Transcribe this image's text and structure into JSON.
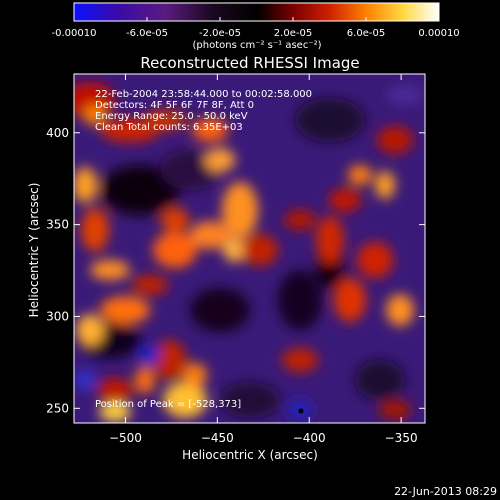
{
  "colorbar": {
    "ticks": [
      "-0.00010",
      "-6.0e-05",
      "-2.0e-05",
      "2.0e-05",
      "6.0e-05",
      "0.00010"
    ],
    "tick_values": [
      -0.0001,
      -6e-05,
      -2e-05,
      2e-05,
      6e-05,
      0.0001
    ],
    "range": [
      -0.0001,
      0.0001
    ],
    "unit_label": "(photons cm⁻² s⁻¹ asec⁻²)",
    "colormap": [
      "#0a10ff",
      "#3a0aa8",
      "#5b1a80",
      "#000000",
      "#7a0000",
      "#d02000",
      "#ff8000",
      "#ffd840",
      "#ffffff"
    ]
  },
  "image": {
    "title": "Reconstructed RHESSI Image",
    "info_lines": [
      "22-Feb-2004 23:58:44.000 to 00:02:58.000",
      "Detectors: 4F 5F 6F 7F 8F, Att 0",
      "Energy Range: 25.0 - 50.0 keV",
      "Clean    Total counts: 6.35E+03"
    ],
    "peak_label": "Position of Peak = [-528,373]",
    "peak_position": [
      -528,
      373
    ],
    "xlabel": "Heliocentric X (arcsec)",
    "ylabel": "Heliocentric Y (arcsec)",
    "x_range": [
      -528,
      -337
    ],
    "y_range": [
      242,
      432
    ],
    "x_ticks": [
      -500,
      -450,
      -400,
      -350
    ],
    "x_tick_labels": [
      "−500",
      "−450",
      "−400",
      "−350"
    ],
    "y_ticks": [
      250,
      300,
      350,
      400
    ],
    "y_tick_labels": [
      "250",
      "300",
      "350",
      "400"
    ]
  },
  "footer": {
    "timestamp": "22-Jun-2013 08:29"
  }
}
